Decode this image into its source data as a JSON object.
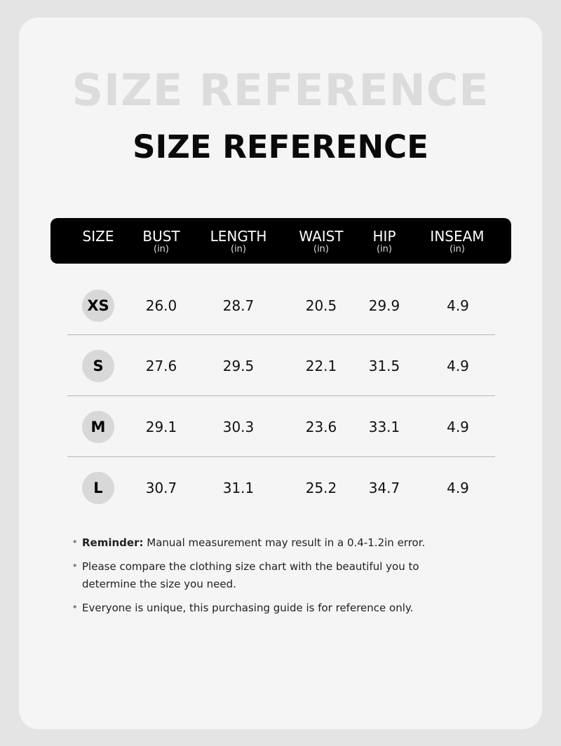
{
  "watermark": "SIZE REFERENCE",
  "title": "SIZE REFERENCE",
  "header": [
    {
      "label": "SIZE",
      "unit": ""
    },
    {
      "label": "BUST",
      "unit": "(in)"
    },
    {
      "label": "LENGTH",
      "unit": "(in)"
    },
    {
      "label": "WAIST",
      "unit": "(in)"
    },
    {
      "label": "HIP",
      "unit": "(in)"
    },
    {
      "label": "INSEAM",
      "unit": "(in)"
    }
  ],
  "rows": [
    {
      "size": "XS",
      "bust": "26.0",
      "length": "28.7",
      "waist": "20.5",
      "hip": "29.9",
      "inseam": "4.9"
    },
    {
      "size": "S",
      "bust": "27.6",
      "length": "29.5",
      "waist": "22.1",
      "hip": "31.5",
      "inseam": "4.9"
    },
    {
      "size": "M",
      "bust": "29.1",
      "length": "30.3",
      "waist": "23.6",
      "hip": "33.1",
      "inseam": "4.9"
    },
    {
      "size": "L",
      "bust": "30.7",
      "length": "31.1",
      "waist": "25.2",
      "hip": "34.7",
      "inseam": "4.9"
    }
  ],
  "notes": {
    "bullet": "*",
    "reminder_label": "Reminder:",
    "reminder_text": " Manual measurement may result in a 0.4-1.2in error.",
    "note2": "Please compare the clothing size chart with the beautiful you to determine the size you need.",
    "note3": "Everyone is unique, this purchasing guide is for reference only."
  }
}
